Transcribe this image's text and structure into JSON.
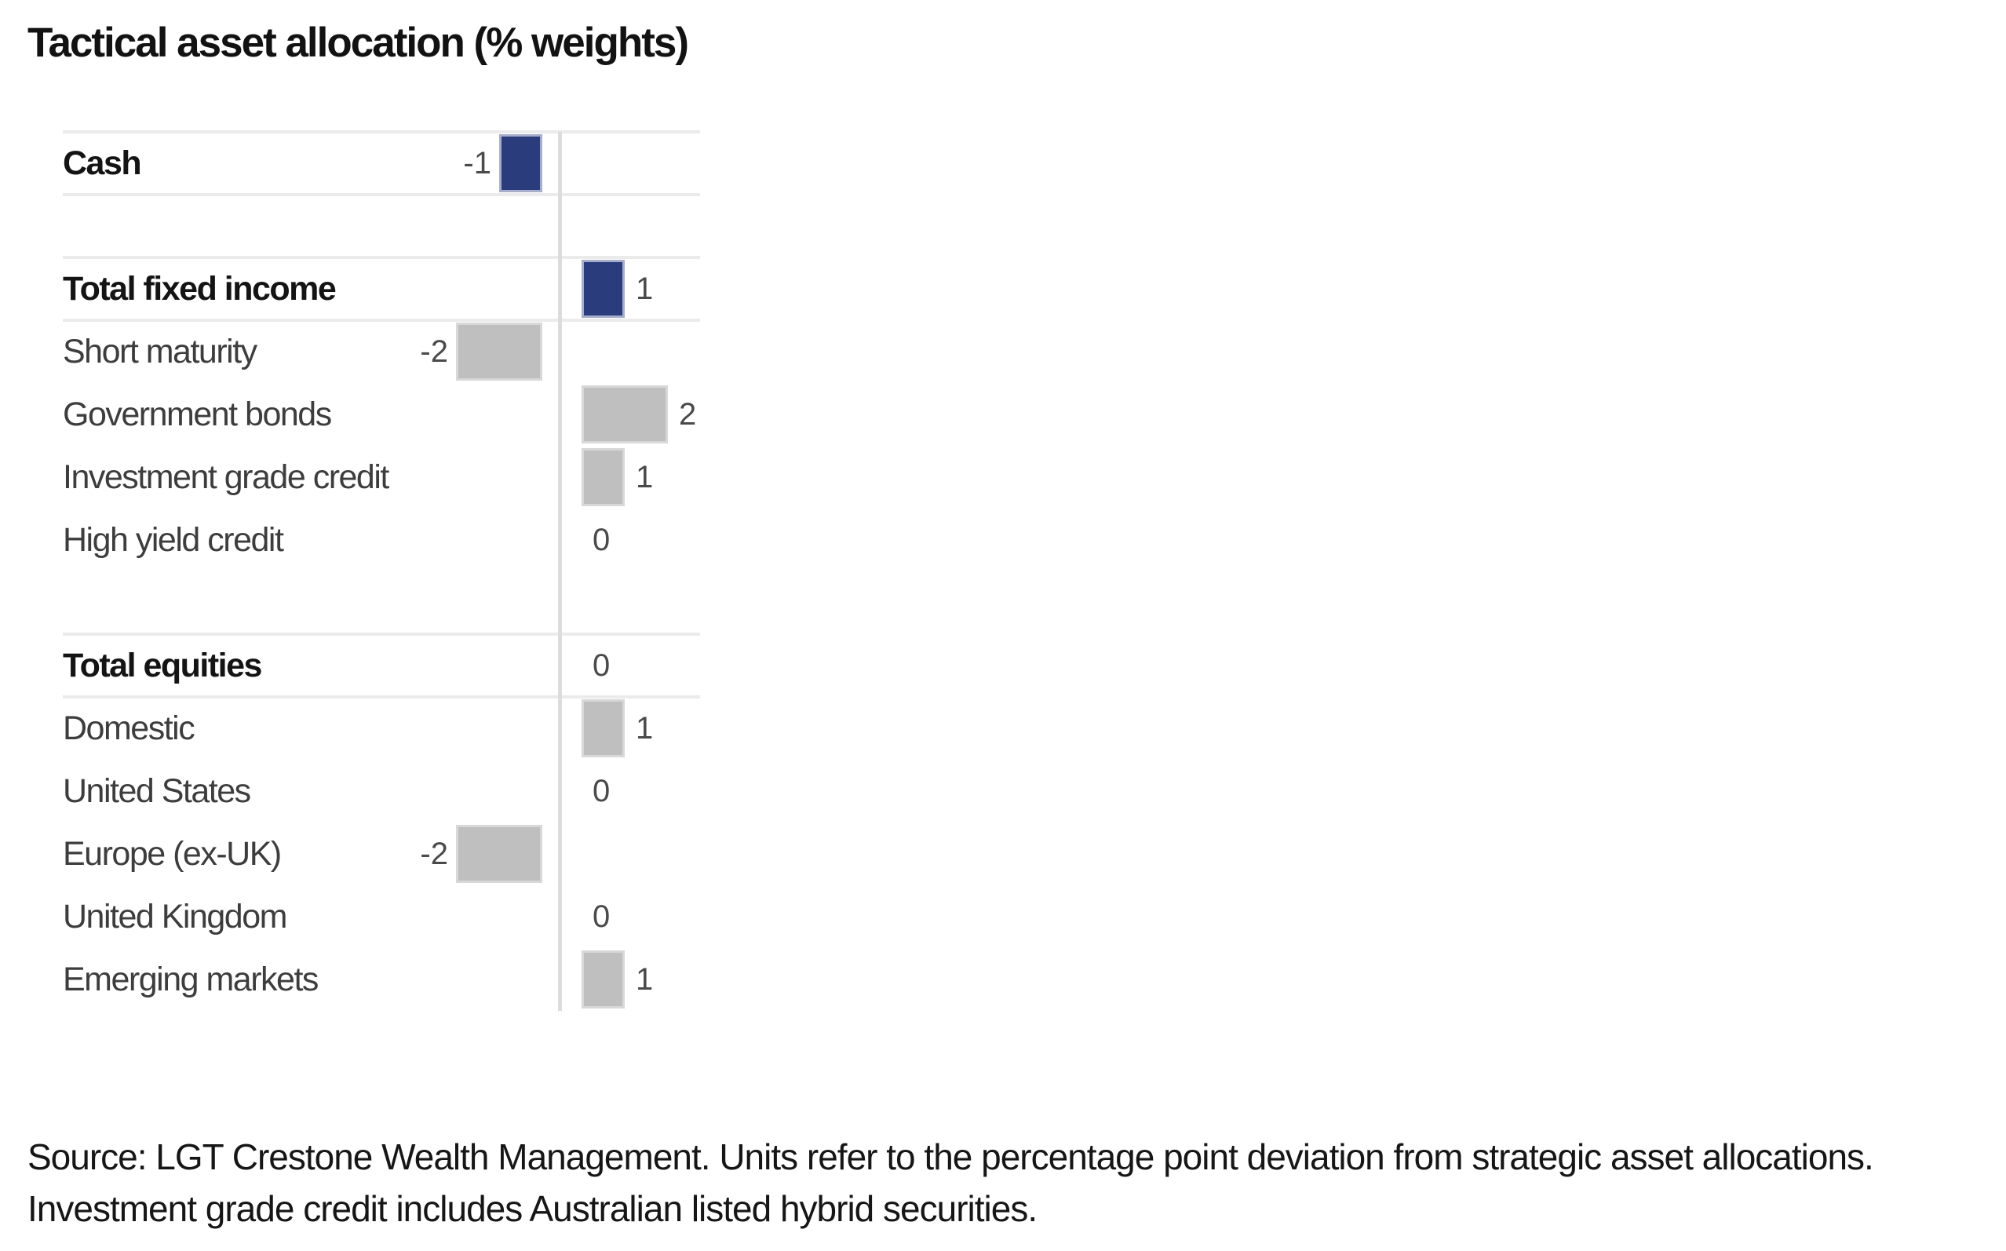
{
  "title": "Tactical asset allocation (% weights)",
  "colors": {
    "highlight_bar": "#2b3c7d",
    "highlight_bar_edge": "#a6aecb",
    "default_bar": "#bfbfbf",
    "default_bar_edge": "#d8d8d8",
    "gridline": "#ebebeb",
    "axis": "#dcdcdc"
  },
  "chart_data": {
    "type": "bar",
    "orientation": "horizontal",
    "title": "Tactical asset allocation (% weights)",
    "value_unit": "percentage point deviation from strategic asset allocation",
    "grid": "partial (separator lines around total rows only)",
    "legend_position": "none",
    "xlim": [
      -4,
      3
    ],
    "rows": [
      {
        "label": "Cash",
        "value": -1,
        "value_label": "-1",
        "emphasis": true,
        "bar_color": "navy",
        "separator_above": true,
        "separator_below": true
      },
      {
        "spacer": true
      },
      {
        "label": "Total fixed income",
        "value": 1,
        "value_label": "1",
        "emphasis": true,
        "bar_color": "navy",
        "separator_above": true,
        "separator_below": true
      },
      {
        "label": "Short maturity",
        "value": -2,
        "value_label": "-2",
        "emphasis": false,
        "bar_color": "gray"
      },
      {
        "label": "Government bonds",
        "value": 2,
        "value_label": "2",
        "emphasis": false,
        "bar_color": "gray"
      },
      {
        "label": "Investment grade credit",
        "value": 1,
        "value_label": "1",
        "emphasis": false,
        "bar_color": "gray"
      },
      {
        "label": "High yield credit",
        "value": 0,
        "value_label": "0",
        "emphasis": false,
        "bar_color": "gray"
      },
      {
        "spacer": true
      },
      {
        "label": "Total equities",
        "value": 0,
        "value_label": "0",
        "emphasis": true,
        "bar_color": "navy",
        "separator_above": true,
        "separator_below": true
      },
      {
        "label": "Domestic",
        "value": 1,
        "value_label": "1",
        "emphasis": false,
        "bar_color": "gray"
      },
      {
        "label": "United States",
        "value": 0,
        "value_label": "0",
        "emphasis": false,
        "bar_color": "gray"
      },
      {
        "label": "Europe (ex-UK)",
        "value": -2,
        "value_label": "-2",
        "emphasis": false,
        "bar_color": "gray"
      },
      {
        "label": "United Kingdom",
        "value": 0,
        "value_label": "0",
        "emphasis": false,
        "bar_color": "gray"
      },
      {
        "label": "Emerging markets",
        "value": 1,
        "value_label": "1",
        "emphasis": false,
        "bar_color": "gray"
      }
    ]
  },
  "source": {
    "line1": "Source: LGT Crestone Wealth Management. Units refer to the percentage point deviation from strategic asset allocations.",
    "line2": "Investment grade credit includes Australian listed hybrid securities."
  }
}
